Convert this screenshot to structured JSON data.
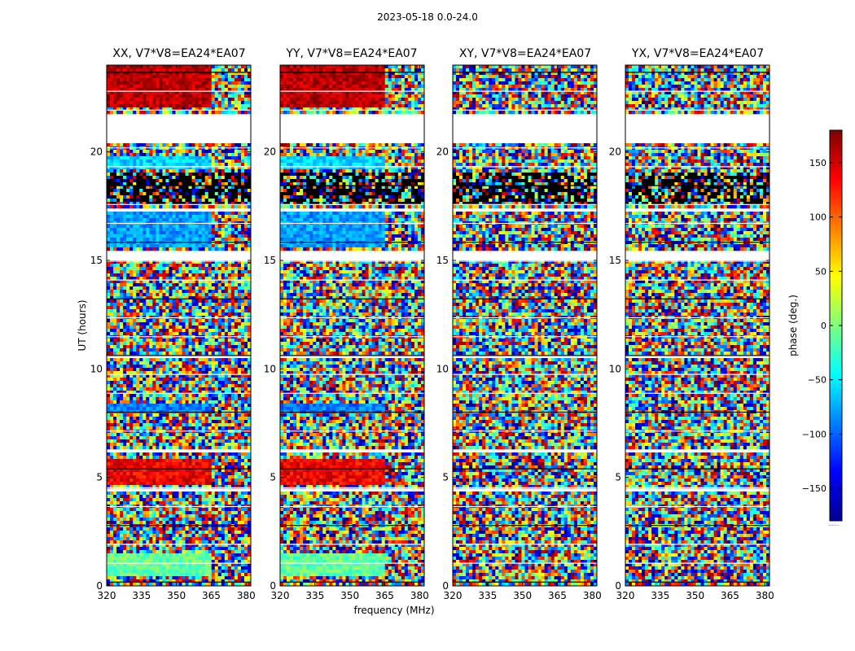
{
  "suptitle": "2023-05-18 0.0-24.0",
  "chart_data": {
    "type": "heatmap",
    "panels": [
      {
        "title": "XX, V7*V8=EA24*EA07",
        "pol": "XX"
      },
      {
        "title": "YY, V7*V8=EA24*EA07",
        "pol": "YY"
      },
      {
        "title": "XY, V7*V8=EA24*EA07",
        "pol": "XY"
      },
      {
        "title": "YX, V7*V8=EA24*EA07",
        "pol": "YX"
      }
    ],
    "xlabel": "frequency (MHz)",
    "ylabel": "UT (hours)",
    "xlim": [
      320,
      382
    ],
    "ylim": [
      0,
      24
    ],
    "xticks": [
      320,
      335,
      350,
      365,
      380
    ],
    "yticks": [
      0,
      5,
      10,
      15,
      20
    ],
    "colorbar": {
      "label": "phase (deg.)",
      "range": [
        -180,
        180
      ],
      "ticks": [
        150,
        100,
        50,
        0,
        -50,
        -100,
        -150
      ],
      "colormap": "jet",
      "extra": "......"
    },
    "flagged_bands_hours": [
      [
        21.8,
        20.4
      ],
      [
        17.4,
        17.2
      ],
      [
        15.5,
        15.0
      ],
      [
        10.6,
        10.5
      ],
      [
        6.3,
        6.1
      ],
      [
        4.5,
        4.4
      ],
      [
        0.45,
        0.4
      ]
    ],
    "dense_black_bands_hours": [
      [
        17.6,
        19.0
      ]
    ],
    "coherent_bands_XX_YY": [
      {
        "from": 0.5,
        "to": 1.5,
        "phase": -10
      },
      {
        "from": 4.6,
        "to": 5.8,
        "phase": 140
      },
      {
        "from": 8.0,
        "to": 8.4,
        "phase": -90
      },
      {
        "from": 15.6,
        "to": 17.2,
        "phase": -80
      },
      {
        "from": 19.2,
        "to": 19.8,
        "phase": -60
      },
      {
        "from": 22.0,
        "to": 24.0,
        "phase": 160
      }
    ]
  }
}
